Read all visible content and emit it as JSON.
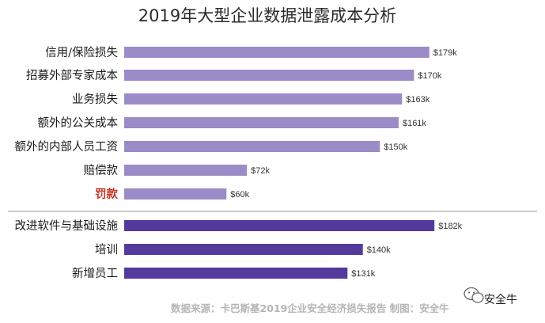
{
  "chart_data": {
    "type": "bar",
    "orientation": "horizontal",
    "title": "2019年大型企业数据泄露成本分析",
    "categories": [
      "信用/保险损失",
      "招募外部专家成本",
      "业务损失",
      "额外的公关成本",
      "额外的内部人员工资",
      "赔偿款",
      "罚款",
      "改进软件与基础设施",
      "培训",
      "新增员工"
    ],
    "values": [
      179,
      170,
      163,
      161,
      150,
      72,
      60,
      182,
      140,
      131
    ],
    "value_labels": [
      "$179k",
      "$170k",
      "$163k",
      "$161k",
      "$150k",
      "$72k",
      "$60k",
      "$182k",
      "$140k",
      "$131k"
    ],
    "unit": "$k",
    "highlighted_category": "罚款",
    "groups": [
      {
        "categories": [
          "信用/保险损失",
          "招募外部专家成本",
          "业务损失",
          "额外的公关成本",
          "额外的内部人员工资",
          "赔偿款",
          "罚款"
        ],
        "color": "#9b8bc7"
      },
      {
        "categories": [
          "改进软件与基础设施",
          "培训",
          "新增员工"
        ],
        "color": "#553a9e"
      }
    ],
    "xlim": [
      0,
      200
    ],
    "grid": false,
    "legend": "none"
  },
  "colors": {
    "bar_light": "#9b8bc7",
    "bar_dark": "#553a9e",
    "highlight_text": "#c0392b",
    "divider": "#9a9a9a",
    "source_text": "#b5b5b5"
  },
  "footer": {
    "source": "数据来源：卡巴斯基2019企业安全经济损失报告  制图：安全牛"
  },
  "watermark": {
    "text": "安全牛",
    "icon": "wechat-icon"
  }
}
